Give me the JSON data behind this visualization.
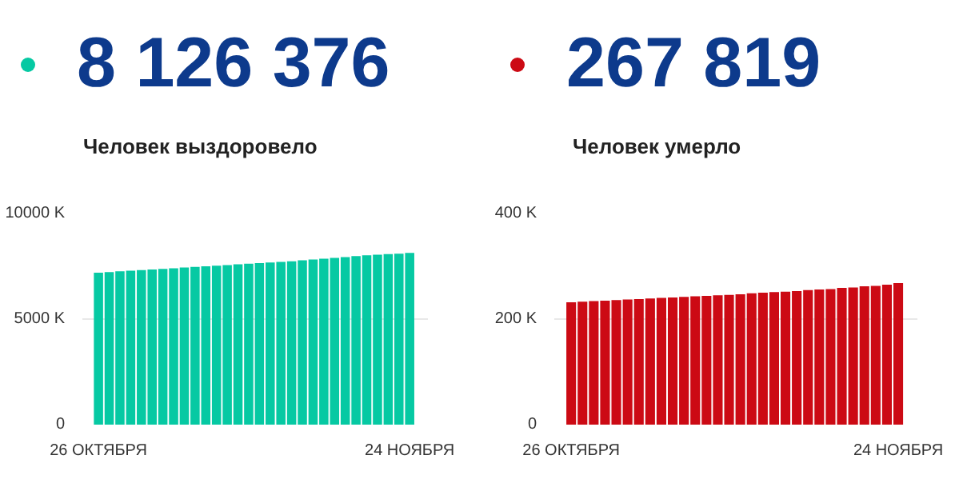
{
  "chart_data": [
    {
      "type": "bar",
      "title": "8 126 376",
      "subtitle": "Человек выздоровело",
      "categories": [
        "26 ОКТЯБРЯ",
        null,
        null,
        null,
        null,
        null,
        null,
        null,
        null,
        null,
        null,
        null,
        null,
        null,
        null,
        null,
        null,
        null,
        null,
        null,
        null,
        null,
        null,
        null,
        null,
        null,
        null,
        null,
        null,
        "24 НОЯБРЯ"
      ],
      "values": [
        7200,
        7230,
        7260,
        7290,
        7320,
        7350,
        7380,
        7410,
        7440,
        7470,
        7500,
        7530,
        7560,
        7590,
        7620,
        7650,
        7680,
        7710,
        7740,
        7780,
        7820,
        7860,
        7900,
        7940,
        7980,
        8020,
        8050,
        8080,
        8100,
        8130
      ],
      "color": "#06c9a3",
      "ylim": [
        0,
        10000
      ],
      "yticks": [
        0,
        {
          "value": 5000,
          "label": "5000 K"
        },
        {
          "value": 10000,
          "label": "10000 K"
        }
      ],
      "grid": "y"
    },
    {
      "type": "bar",
      "title": "267 819",
      "subtitle": "Человек умерло",
      "categories": [
        "26 ОКТЯБРЯ",
        null,
        null,
        null,
        null,
        null,
        null,
        null,
        null,
        null,
        null,
        null,
        null,
        null,
        null,
        null,
        null,
        null,
        null,
        null,
        null,
        null,
        null,
        null,
        null,
        null,
        null,
        null,
        null,
        "24 НОЯБРЯ"
      ],
      "values": [
        232,
        233,
        234,
        235,
        236,
        237,
        238,
        239,
        240,
        241,
        242,
        243,
        244,
        245,
        246,
        247,
        249,
        250,
        251,
        252,
        253,
        255,
        256,
        257,
        259,
        260,
        262,
        263,
        265,
        268
      ],
      "color": "#cc0a14",
      "ylim": [
        0,
        400
      ],
      "yticks": [
        0,
        {
          "value": 200,
          "label": "200 K"
        },
        {
          "value": 400,
          "label": "400 K"
        }
      ],
      "grid": "y"
    }
  ]
}
